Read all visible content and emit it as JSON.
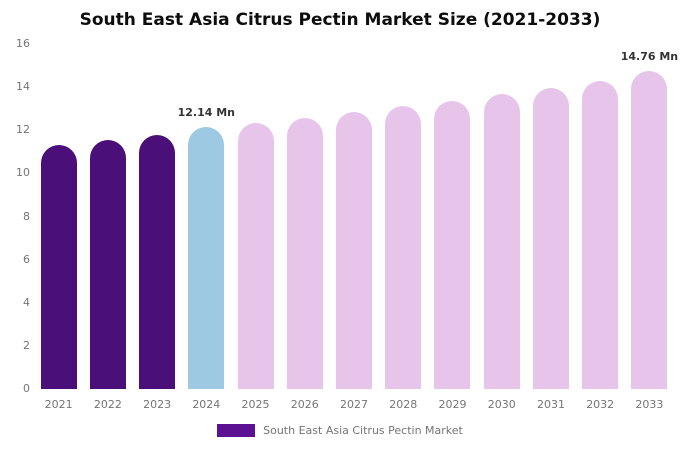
{
  "chart_data": {
    "type": "bar",
    "title": "South East Asia Citrus Pectin Market Size (2021-2033)",
    "categories": [
      "2021",
      "2022",
      "2023",
      "2024",
      "2025",
      "2026",
      "2027",
      "2028",
      "2029",
      "2030",
      "2031",
      "2032",
      "2033"
    ],
    "values": [
      11.3,
      11.55,
      11.8,
      12.14,
      12.32,
      12.58,
      12.84,
      13.12,
      13.38,
      13.66,
      13.95,
      14.28,
      14.76
    ],
    "bar_colors": [
      "#4a0f78",
      "#4a0f78",
      "#4a0f78",
      "#9ec9e2",
      "#e7c5eb",
      "#e7c5eb",
      "#e7c5eb",
      "#e7c5eb",
      "#e7c5eb",
      "#e7c5eb",
      "#e7c5eb",
      "#e7c5eb",
      "#e7c5eb"
    ],
    "annotations": [
      {
        "index": 3,
        "text": "12.14 Mn"
      },
      {
        "index": 12,
        "text": "14.76 Mn"
      }
    ],
    "xlabel": "",
    "ylabel": "",
    "ylim": [
      0,
      16
    ],
    "yticks": [
      0,
      2,
      4,
      6,
      8,
      10,
      12,
      14,
      16
    ],
    "grid": false,
    "legend_position": "bottom",
    "legend": [
      {
        "label": "South East Asia Citrus Pectin Market",
        "color": "#5c1193"
      }
    ]
  },
  "colors": {
    "background": "#ffffff",
    "dark_purple": "#4a0f78",
    "highlight_blue": "#9ec9e2",
    "forecast_pink": "#e7c5eb",
    "legend_purple": "#5c1193",
    "axis_text": "#757575",
    "title_text": "#0d0d0d",
    "annotation_text": "#333333"
  }
}
